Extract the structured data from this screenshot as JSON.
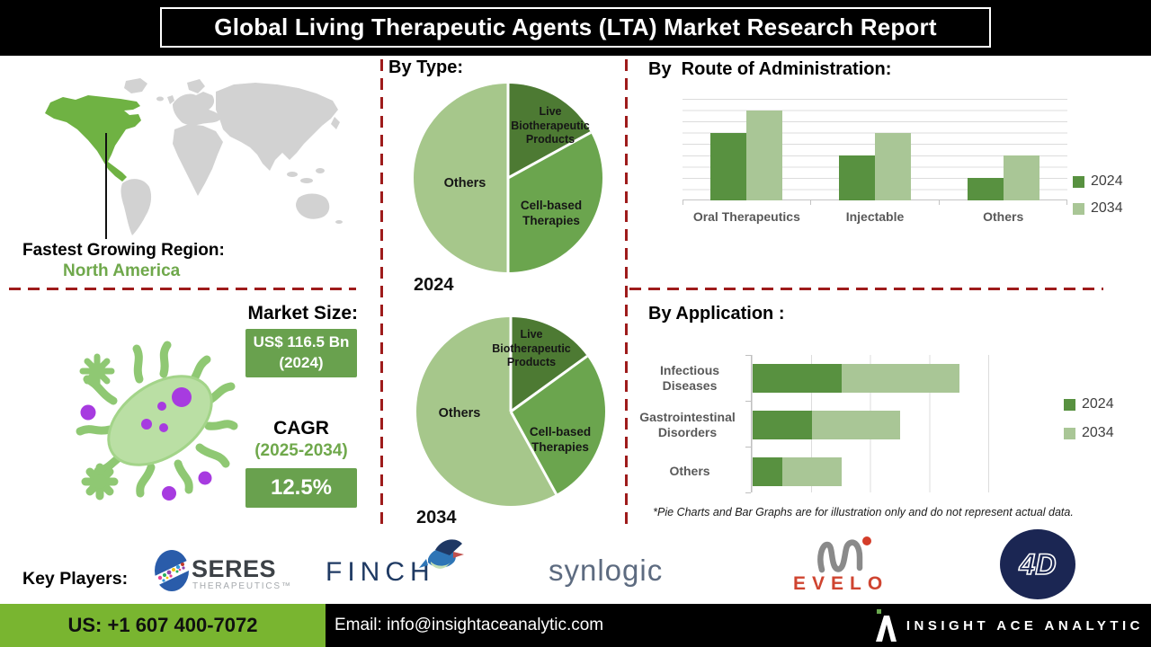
{
  "title": "Global Living Therapeutic Agents (LTA) Market Research Report",
  "region": {
    "label": "Fastest Growing Region:",
    "value": "North America"
  },
  "market": {
    "size_label": "Market Size:",
    "size_value": "US$ 116.5 Bn",
    "size_year": "(2024)",
    "cagr_label": "CAGR",
    "cagr_period": "(2025-2034)",
    "cagr_value": "12.5%"
  },
  "footnote": "*Pie Charts and Bar Graphs are for illustration only and do not represent actual data.",
  "key_players": {
    "label": "Key Players:",
    "seres": "SERES",
    "seres_sub": "THERAPEUTICS™",
    "finch": "FINCH",
    "synlogic": "synlogic",
    "evelo": "EVELO",
    "fourd": "4D"
  },
  "footer": {
    "phone": "US: +1 607 400-7072",
    "email": "Email: info@insightaceanalytic.com",
    "brand": "INSIGHT ACE ANALYTIC"
  },
  "colors": {
    "dark_green": "#589140",
    "light_green": "#a9c696",
    "pie_dark": "#4d7a33",
    "pie_mid": "#6ba54e",
    "pie_light": "#a6c78b",
    "accent_green_text": "#6fa84b",
    "box_green": "#69a14e",
    "footer_green": "#79b530",
    "dash_red": "#9e1b1b",
    "map_green": "#6fb243",
    "map_gray": "#d2d2d2",
    "navy": "#1b2653",
    "evelo_red": "#cf4430"
  },
  "chart_data": [
    {
      "id": "by_type_2024",
      "type": "pie",
      "title": "By Type:",
      "year_label": "2024",
      "legend_position": "none",
      "slices": [
        {
          "label": "Live Biotherapeutic Products",
          "value": 17,
          "color": "#4d7a33"
        },
        {
          "label": "Cell-based Therapies",
          "value": 33,
          "color": "#6ba54e"
        },
        {
          "label": "Others",
          "value": 50,
          "color": "#a6c78b"
        }
      ]
    },
    {
      "id": "by_type_2034",
      "type": "pie",
      "title": "By Type:",
      "year_label": "2034",
      "legend_position": "none",
      "slices": [
        {
          "label": "Live Biotherapeutic Products",
          "value": 15,
          "color": "#4d7a33"
        },
        {
          "label": "Cell-based Therapies",
          "value": 27,
          "color": "#6ba54e"
        },
        {
          "label": "Others",
          "value": 58,
          "color": "#a6c78b"
        }
      ]
    },
    {
      "id": "by_route_of_administration",
      "type": "bar",
      "title": "By  Route of Administration:",
      "categories": [
        "Oral Therapeutics",
        "Injectable",
        "Others"
      ],
      "series": [
        {
          "name": "2024",
          "values": [
            6,
            4,
            2
          ],
          "color": "#589140"
        },
        {
          "name": "2034",
          "values": [
            8,
            6,
            4
          ],
          "color": "#a9c696"
        }
      ],
      "ylim": [
        0,
        9
      ],
      "grid": true,
      "legend_position": "right",
      "note_values_are_relative_gridline_units": true
    },
    {
      "id": "by_application",
      "type": "bar",
      "orientation": "horizontal",
      "stacked": true,
      "title": "By Application :",
      "categories": [
        "Infectious Diseases",
        "Gastrointestinal Disorders",
        "Others"
      ],
      "series": [
        {
          "name": "2024",
          "values": [
            1.5,
            1.0,
            0.5
          ],
          "color": "#589140"
        },
        {
          "name": "2034",
          "values": [
            2.0,
            1.5,
            1.0
          ],
          "color": "#a9c696"
        }
      ],
      "xlim": [
        0,
        4.5
      ],
      "grid": true,
      "legend_position": "right",
      "note_values_are_relative_gridline_units": true
    }
  ]
}
